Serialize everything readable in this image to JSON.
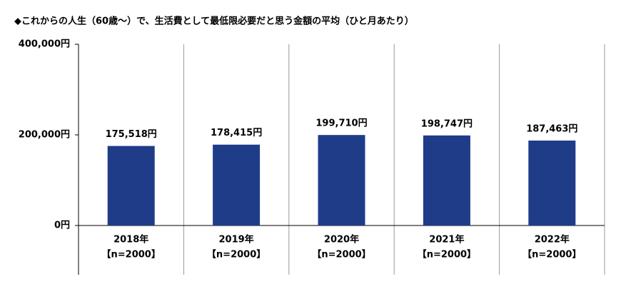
{
  "chart_data": {
    "type": "bar",
    "title": "◆これからの人生（60歳～）で、生活費として最低限必要だと思う金額の平均（ひと月あたり）",
    "categories": [
      "2018年",
      "2019年",
      "2020年",
      "2021年",
      "2022年"
    ],
    "sample_sizes": [
      "【n=2000】",
      "【n=2000】",
      "【n=2000】",
      "【n=2000】",
      "【n=2000】"
    ],
    "values": [
      175518,
      178415,
      199710,
      198747,
      187463
    ],
    "value_labels": [
      "175,518円",
      "178,415円",
      "199,710円",
      "198,747円",
      "187,463円"
    ],
    "color": "#1f3c88",
    "ylim": [
      0,
      400000
    ],
    "yticks": [
      {
        "value": 0,
        "label": "0円"
      },
      {
        "value": 200000,
        "label": "200,000円"
      },
      {
        "value": 400000,
        "label": "400,000円"
      }
    ]
  }
}
